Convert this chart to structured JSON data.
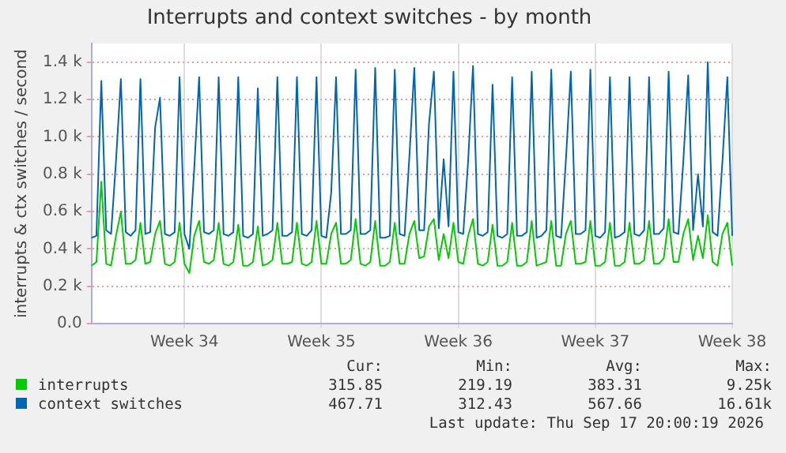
{
  "chart_data": {
    "type": "line",
    "title": "Interrupts and context switches - by month",
    "ylabel": "interrupts & ctx switches / second",
    "categories": [
      null,
      null,
      null,
      null,
      null,
      null,
      null,
      null,
      null,
      null,
      null,
      null,
      null,
      null,
      null,
      null,
      null,
      null,
      null,
      "Week 34",
      null,
      null,
      null,
      null,
      null,
      null,
      null,
      null,
      null,
      null,
      null,
      null,
      null,
      null,
      null,
      null,
      null,
      null,
      null,
      null,
      null,
      null,
      null,
      null,
      null,
      null,
      null,
      "Week 35",
      null,
      null,
      null,
      null,
      null,
      null,
      null,
      null,
      null,
      null,
      null,
      null,
      null,
      null,
      null,
      null,
      null,
      null,
      null,
      null,
      null,
      null,
      null,
      null,
      null,
      null,
      null,
      "Week 36",
      null,
      null,
      null,
      null,
      null,
      null,
      null,
      null,
      null,
      null,
      null,
      null,
      null,
      null,
      null,
      null,
      null,
      null,
      null,
      null,
      null,
      null,
      null,
      null,
      null,
      null,
      null,
      "Week 37",
      null,
      null,
      null,
      null,
      null,
      null,
      null,
      null,
      null,
      null,
      null,
      null,
      null,
      null,
      null,
      null,
      null,
      null,
      null,
      null,
      null,
      null,
      null,
      null,
      null,
      null,
      null,
      "Week 38"
    ],
    "ylim": [
      0,
      1500
    ],
    "yticks": [
      {
        "value": 0,
        "label": "0.0"
      },
      {
        "value": 200,
        "label": "0.2 k"
      },
      {
        "value": 400,
        "label": "0.4 k"
      },
      {
        "value": 600,
        "label": "0.6 k"
      },
      {
        "value": 800,
        "label": "0.8 k"
      },
      {
        "value": 1000,
        "label": "1.0 k"
      },
      {
        "value": 1200,
        "label": "1.2 k"
      },
      {
        "value": 1400,
        "label": "1.4 k"
      }
    ],
    "series": [
      {
        "name": "interrupts",
        "color": "#00cc00",
        "values": [
          310,
          330,
          760,
          320,
          310,
          470,
          600,
          320,
          320,
          340,
          540,
          320,
          330,
          480,
          550,
          320,
          310,
          330,
          540,
          320,
          270,
          470,
          550,
          330,
          320,
          340,
          540,
          320,
          310,
          330,
          530,
          310,
          310,
          330,
          520,
          310,
          320,
          340,
          540,
          320,
          320,
          330,
          540,
          320,
          310,
          330,
          550,
          320,
          320,
          480,
          540,
          320,
          320,
          340,
          560,
          320,
          310,
          330,
          550,
          310,
          310,
          330,
          540,
          320,
          320,
          480,
          550,
          350,
          360,
          520,
          560,
          340,
          480,
          350,
          540,
          330,
          320,
          470,
          560,
          320,
          310,
          330,
          530,
          310,
          310,
          330,
          540,
          310,
          310,
          330,
          550,
          310,
          320,
          330,
          550,
          310,
          310,
          480,
          550,
          320,
          320,
          330,
          550,
          310,
          310,
          330,
          540,
          310,
          310,
          330,
          540,
          320,
          320,
          340,
          550,
          320,
          320,
          350,
          560,
          330,
          330,
          480,
          560,
          340,
          470,
          350,
          580,
          330,
          310,
          480,
          540,
          310
        ]
      },
      {
        "name": "context switches",
        "color": "#0066b3",
        "values": [
          460,
          470,
          1300,
          500,
          480,
          870,
          1310,
          490,
          470,
          500,
          1310,
          480,
          490,
          1050,
          1210,
          480,
          470,
          490,
          1320,
          480,
          400,
          830,
          1320,
          490,
          480,
          500,
          1320,
          480,
          470,
          490,
          1320,
          470,
          460,
          480,
          1260,
          470,
          480,
          500,
          1320,
          470,
          470,
          490,
          1320,
          480,
          470,
          500,
          1320,
          470,
          460,
          700,
          1320,
          480,
          480,
          500,
          1360,
          480,
          480,
          500,
          1370,
          460,
          460,
          470,
          1360,
          480,
          470,
          900,
          1370,
          500,
          500,
          1070,
          1350,
          510,
          880,
          520,
          1350,
          490,
          480,
          870,
          1380,
          480,
          470,
          490,
          1280,
          470,
          460,
          480,
          1320,
          470,
          470,
          490,
          1350,
          460,
          470,
          500,
          1360,
          470,
          460,
          880,
          1350,
          480,
          480,
          500,
          1360,
          470,
          460,
          490,
          1320,
          460,
          470,
          490,
          1320,
          480,
          470,
          500,
          1320,
          480,
          480,
          510,
          1350,
          490,
          480,
          870,
          1330,
          500,
          800,
          520,
          1400,
          490,
          470,
          870,
          1320,
          470
        ]
      }
    ],
    "annotations": [
      "Cur:",
      "Min:",
      "Avg:",
      "Max:",
      "315.85",
      "219.19",
      "383.31",
      "9.25k",
      "467.71",
      "312.43",
      "567.66",
      "16.61k",
      "Last update: Thu Sep 17 20:00:19 2026"
    ],
    "grid": true,
    "legend": "bottom",
    "marker": "none",
    "line_style": "solid"
  }
}
